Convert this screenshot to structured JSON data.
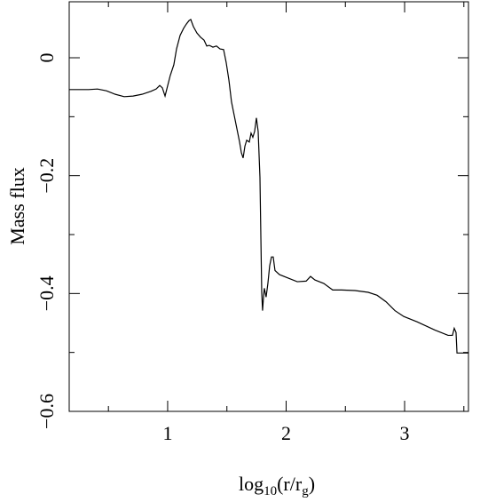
{
  "chart_data": {
    "type": "line",
    "xlabel": [
      "log",
      "10",
      "(r/r",
      "g",
      ")"
    ],
    "ylabel": "Mass flux",
    "xlim": [
      0.169,
      3.539
    ],
    "ylim": [
      -0.6,
      0.095
    ],
    "xticks": [
      1,
      2,
      3
    ],
    "xminor_ticks": [
      0.5,
      1.5,
      2.5,
      3.5
    ],
    "yticks": [
      0,
      {
        "value": -0.2,
        "label": "−0.2"
      },
      {
        "value": -0.4,
        "label": "−0.4"
      },
      {
        "value": -0.6,
        "label": "−0.6"
      }
    ],
    "yminor_ticks": [
      -0.1,
      -0.3,
      -0.5
    ],
    "color": "#000000",
    "x": [
      0.169,
      0.333,
      0.408,
      0.483,
      0.558,
      0.633,
      0.708,
      0.783,
      0.858,
      0.903,
      0.933,
      0.955,
      0.978,
      0.993,
      1.022,
      1.052,
      1.075,
      1.105,
      1.135,
      1.157,
      1.18,
      1.195,
      1.217,
      1.247,
      1.277,
      1.307,
      1.33,
      1.352,
      1.382,
      1.412,
      1.442,
      1.472,
      1.494,
      1.517,
      1.539,
      1.562,
      1.584,
      1.607,
      1.622,
      1.637,
      1.652,
      1.667,
      1.689,
      1.704,
      1.719,
      1.734,
      1.749,
      1.764,
      1.779,
      1.787,
      1.794,
      1.801,
      1.809,
      1.816,
      1.831,
      1.846,
      1.861,
      1.876,
      1.891,
      1.906,
      1.944,
      2.019,
      2.094,
      2.169,
      2.206,
      2.243,
      2.318,
      2.393,
      2.468,
      2.581,
      2.693,
      2.768,
      2.843,
      2.918,
      2.993,
      3.105,
      3.255,
      3.367,
      3.404,
      3.419,
      3.434,
      3.442,
      3.539
    ],
    "values": [
      -0.054,
      -0.054,
      -0.053,
      -0.056,
      -0.062,
      -0.066,
      -0.065,
      -0.062,
      -0.057,
      -0.053,
      -0.047,
      -0.051,
      -0.065,
      -0.053,
      -0.03,
      -0.012,
      0.015,
      0.038,
      0.05,
      0.057,
      0.063,
      0.065,
      0.053,
      0.042,
      0.035,
      0.03,
      0.02,
      0.021,
      0.018,
      0.02,
      0.015,
      0.014,
      -0.008,
      -0.038,
      -0.075,
      -0.098,
      -0.12,
      -0.143,
      -0.161,
      -0.17,
      -0.15,
      -0.14,
      -0.143,
      -0.128,
      -0.135,
      -0.125,
      -0.102,
      -0.125,
      -0.203,
      -0.308,
      -0.398,
      -0.429,
      -0.406,
      -0.391,
      -0.406,
      -0.383,
      -0.353,
      -0.338,
      -0.338,
      -0.361,
      -0.368,
      -0.374,
      -0.38,
      -0.379,
      -0.371,
      -0.377,
      -0.383,
      -0.394,
      -0.394,
      -0.395,
      -0.398,
      -0.403,
      -0.414,
      -0.429,
      -0.439,
      -0.448,
      -0.462,
      -0.471,
      -0.471,
      -0.459,
      -0.466,
      -0.501,
      -0.501
    ]
  }
}
